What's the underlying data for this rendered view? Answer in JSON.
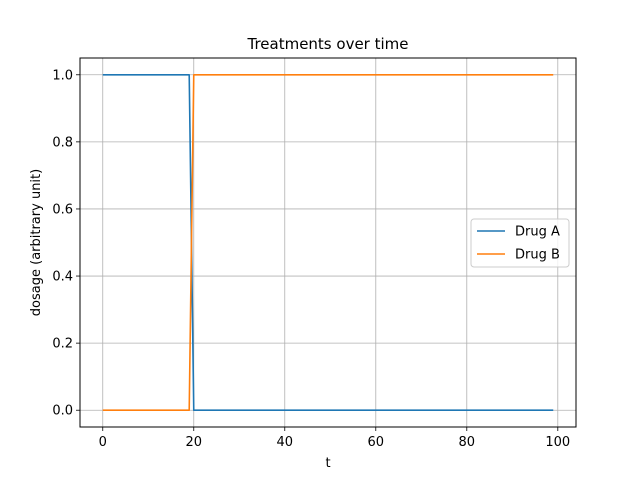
{
  "chart_data": {
    "type": "line",
    "title": "Treatments over time",
    "xlabel": "t",
    "ylabel": "dosage (arbitrary unit)",
    "xlim": [
      -5,
      104
    ],
    "ylim": [
      -0.05,
      1.05
    ],
    "xticks": [
      0,
      20,
      40,
      60,
      80,
      100
    ],
    "xtick_labels": [
      "0",
      "20",
      "40",
      "60",
      "80",
      "100"
    ],
    "yticks": [
      0.0,
      0.2,
      0.4,
      0.6,
      0.8,
      1.0
    ],
    "ytick_labels": [
      "0.0",
      "0.2",
      "0.4",
      "0.6",
      "0.8",
      "1.0"
    ],
    "grid": true,
    "legend_position": "center-right",
    "series": [
      {
        "name": "Drug A",
        "color": "#1f77b4",
        "x": [
          0,
          19,
          20,
          99
        ],
        "y": [
          1,
          1,
          0,
          0
        ]
      },
      {
        "name": "Drug B",
        "color": "#ff7f0e",
        "x": [
          0,
          19,
          20,
          99
        ],
        "y": [
          0,
          0,
          1,
          1
        ]
      }
    ]
  }
}
